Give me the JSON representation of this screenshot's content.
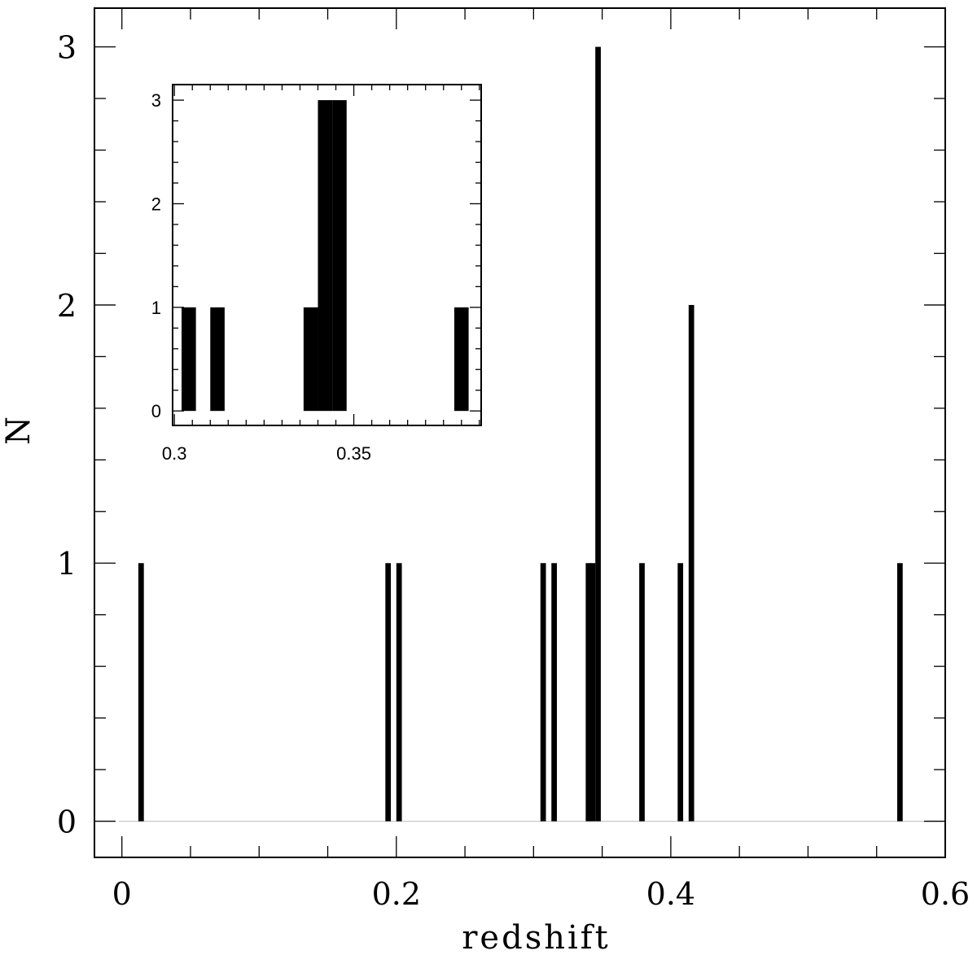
{
  "chart_data": [
    {
      "id": "main",
      "type": "bar",
      "xlabel": "redshift",
      "ylabel": "N",
      "xlim": [
        -0.02,
        0.6
      ],
      "ylim": [
        -0.14,
        3.15
      ],
      "xticks": [
        0,
        0.2,
        0.4,
        0.6
      ],
      "xtick_labels": [
        "0",
        "0.2",
        "0.4",
        "0.6"
      ],
      "yticks": [
        0,
        1,
        2,
        3
      ],
      "ytick_labels": [
        "0",
        "1",
        "2",
        "3"
      ],
      "bin_width": 0.004,
      "bins": [
        {
          "x": 0.014,
          "value": 1
        },
        {
          "x": 0.194,
          "value": 1
        },
        {
          "x": 0.202,
          "value": 1
        },
        {
          "x": 0.307,
          "value": 1
        },
        {
          "x": 0.315,
          "value": 1
        },
        {
          "x": 0.34,
          "value": 1
        },
        {
          "x": 0.343,
          "value": 1
        },
        {
          "x": 0.347,
          "value": 3
        },
        {
          "x": 0.379,
          "value": 1
        },
        {
          "x": 0.407,
          "value": 1
        },
        {
          "x": 0.415,
          "value": 2
        },
        {
          "x": 0.567,
          "value": 1
        }
      ],
      "baseline": true,
      "grid": false
    },
    {
      "id": "inset",
      "type": "bar",
      "xlabel": "",
      "ylabel": "",
      "xlim": [
        0.2995,
        0.3855
      ],
      "ylim": [
        -0.14,
        3.15
      ],
      "xticks": [
        0.3,
        0.35
      ],
      "xtick_labels": [
        "0.3",
        "0.35"
      ],
      "yticks": [
        0,
        1,
        2,
        3
      ],
      "ytick_labels": [
        "0",
        "1",
        "2",
        "3"
      ],
      "bin_width": 0.004,
      "bins": [
        {
          "x": 0.304,
          "value": 1
        },
        {
          "x": 0.312,
          "value": 1
        },
        {
          "x": 0.338,
          "value": 1
        },
        {
          "x": 0.342,
          "value": 3
        },
        {
          "x": 0.346,
          "value": 3
        },
        {
          "x": 0.38,
          "value": 1
        }
      ],
      "grid": false
    }
  ]
}
